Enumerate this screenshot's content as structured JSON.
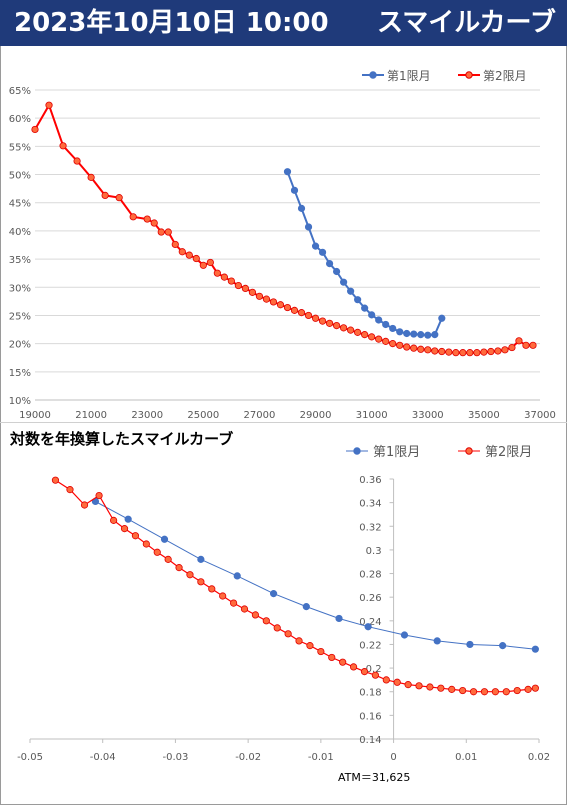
{
  "header": {
    "date": "2023年10月10日 10:00",
    "title": "スマイルカーブ"
  },
  "chart_data": [
    {
      "type": "line",
      "title": "",
      "legend_position": "top-right",
      "xlim": [
        19000,
        37000
      ],
      "ylim": [
        0.1,
        0.65
      ],
      "x_ticks": [
        "19000",
        "21000",
        "23000",
        "25000",
        "27000",
        "29000",
        "31000",
        "33000",
        "35000",
        "37000"
      ],
      "y_ticks": [
        "10%",
        "15%",
        "20%",
        "25%",
        "30%",
        "35%",
        "40%",
        "45%",
        "50%",
        "55%",
        "60%",
        "65%"
      ],
      "series": [
        {
          "name": "第1限月",
          "color": "#4472c4",
          "x": [
            28000,
            28250,
            28500,
            28750,
            29000,
            29250,
            29500,
            29750,
            30000,
            30250,
            30500,
            30750,
            31000,
            31250,
            31500,
            31750,
            32000,
            32250,
            32500,
            32750,
            33000,
            33250,
            33500
          ],
          "y": [
            0.505,
            0.472,
            0.44,
            0.407,
            0.373,
            0.362,
            0.342,
            0.328,
            0.309,
            0.293,
            0.278,
            0.263,
            0.251,
            0.242,
            0.234,
            0.227,
            0.221,
            0.218,
            0.217,
            0.216,
            0.215,
            0.216,
            0.245
          ]
        },
        {
          "name": "第2限月",
          "color": "#ff0000",
          "x": [
            19000,
            19500,
            20000,
            20500,
            21000,
            21500,
            22000,
            22500,
            23000,
            23250,
            23500,
            23750,
            24000,
            24250,
            24500,
            24750,
            25000,
            25250,
            25500,
            25750,
            26000,
            26250,
            26500,
            26750,
            27000,
            27250,
            27500,
            27750,
            28000,
            28250,
            28500,
            28750,
            29000,
            29250,
            29500,
            29750,
            30000,
            30250,
            30500,
            30750,
            31000,
            31250,
            31500,
            31750,
            32000,
            32250,
            32500,
            32750,
            33000,
            33250,
            33500,
            33750,
            34000,
            34250,
            34500,
            34750,
            35000,
            35250,
            35500,
            35750,
            36000,
            36250,
            36500,
            36750
          ],
          "y": [
            0.58,
            0.623,
            0.551,
            0.524,
            0.495,
            0.463,
            0.459,
            0.425,
            0.421,
            0.414,
            0.398,
            0.398,
            0.376,
            0.363,
            0.357,
            0.351,
            0.339,
            0.344,
            0.325,
            0.318,
            0.311,
            0.303,
            0.298,
            0.291,
            0.284,
            0.279,
            0.274,
            0.269,
            0.264,
            0.259,
            0.255,
            0.25,
            0.245,
            0.24,
            0.236,
            0.232,
            0.228,
            0.224,
            0.22,
            0.216,
            0.212,
            0.208,
            0.204,
            0.2,
            0.197,
            0.194,
            0.192,
            0.19,
            0.189,
            0.187,
            0.186,
            0.185,
            0.184,
            0.184,
            0.184,
            0.184,
            0.185,
            0.186,
            0.187,
            0.189,
            0.193,
            0.205,
            0.197,
            0.197
          ]
        }
      ]
    },
    {
      "type": "line",
      "title": "対数を年換算したスマイルカーブ",
      "legend_position": "top-right",
      "xlim": [
        -0.05,
        0.02
      ],
      "ylim": [
        0.14,
        0.36
      ],
      "x_ticks": [
        "-0.05",
        "-0.04",
        "-0.03",
        "-0.02",
        "-0.01",
        "0",
        "0.01",
        "0.02"
      ],
      "y_ticks": [
        "0.36",
        "0.34",
        "0.32",
        "0.3",
        "0.28",
        "0.26",
        "0.24",
        "0.22",
        "0.2",
        "0.18",
        "0.16",
        "0.14"
      ],
      "note": "ATM＝31,625",
      "series": [
        {
          "name": "第1限月",
          "color": "#4472c4",
          "x": [
            -0.041,
            -0.0365,
            -0.0315,
            -0.0265,
            -0.0215,
            -0.0165,
            -0.012,
            -0.0075,
            -0.0035,
            0.0015,
            0.006,
            0.0105,
            0.015,
            0.0195
          ],
          "y": [
            0.341,
            0.326,
            0.309,
            0.292,
            0.278,
            0.263,
            0.252,
            0.242,
            0.235,
            0.228,
            0.223,
            0.22,
            0.219,
            0.216
          ]
        },
        {
          "name": "第2限月",
          "color": "#ff0000",
          "x": [
            -0.0465,
            -0.0445,
            -0.0425,
            -0.0405,
            -0.0385,
            -0.037,
            -0.0355,
            -0.034,
            -0.0325,
            -0.031,
            -0.0295,
            -0.028,
            -0.0265,
            -0.025,
            -0.0235,
            -0.022,
            -0.0205,
            -0.019,
            -0.0175,
            -0.016,
            -0.0145,
            -0.013,
            -0.0115,
            -0.01,
            -0.0085,
            -0.007,
            -0.0055,
            -0.004,
            -0.0025,
            -0.001,
            0.0005,
            0.002,
            0.0035,
            0.005,
            0.0065,
            0.008,
            0.0095,
            0.011,
            0.0125,
            0.014,
            0.0155,
            0.017,
            0.0185,
            0.0195
          ],
          "y": [
            0.359,
            0.351,
            0.338,
            0.346,
            0.325,
            0.318,
            0.312,
            0.305,
            0.298,
            0.292,
            0.285,
            0.279,
            0.273,
            0.267,
            0.261,
            0.255,
            0.25,
            0.245,
            0.24,
            0.234,
            0.229,
            0.223,
            0.219,
            0.214,
            0.209,
            0.205,
            0.201,
            0.197,
            0.194,
            0.19,
            0.188,
            0.186,
            0.185,
            0.184,
            0.183,
            0.182,
            0.181,
            0.18,
            0.18,
            0.18,
            0.18,
            0.181,
            0.182,
            0.183
          ]
        }
      ]
    }
  ]
}
